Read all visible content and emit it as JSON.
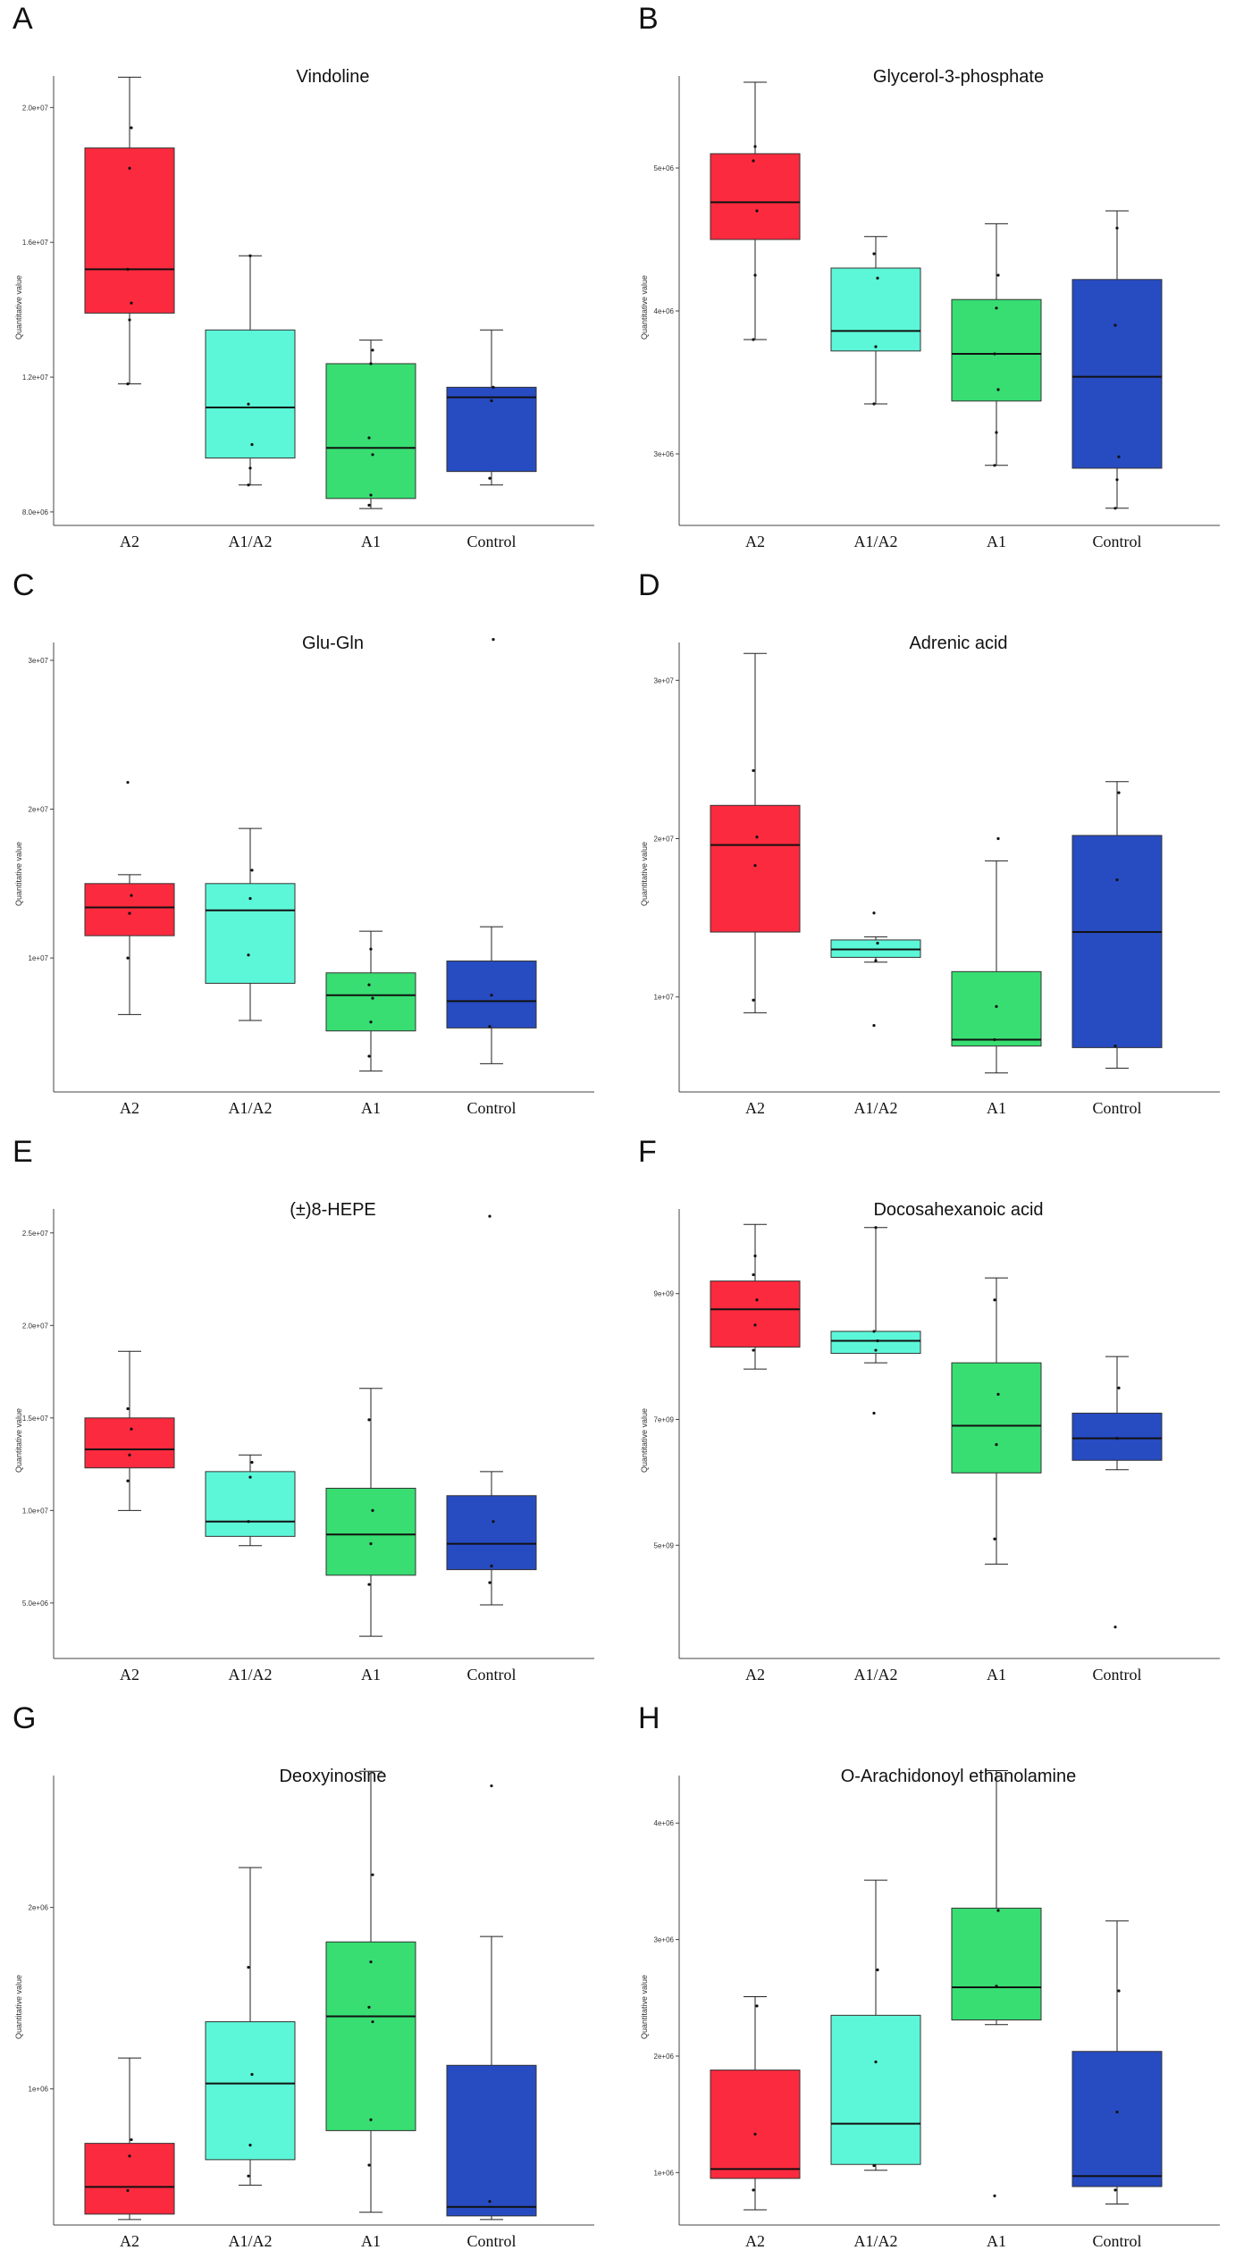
{
  "chart_data": [
    {
      "panel_letter": "A",
      "type": "box",
      "title": "Vindoline",
      "ylabel": "Quantitative value",
      "categories": [
        "A2",
        "A1/A2",
        "A1",
        "Control"
      ],
      "colors": [
        "#fb2a3e",
        "#5cf7d8",
        "#38de72",
        "#274bc1"
      ],
      "ylim": [
        7600000,
        21600000
      ],
      "yticks": [
        8000000,
        12000000,
        16000000,
        20000000
      ],
      "ytick_labels": [
        "8.0e+06",
        "1.2e+07",
        "1.6e+07",
        "2.0e+07"
      ],
      "boxes": [
        {
          "min": 11800000,
          "q1": 13900000,
          "median": 15200000,
          "q3": 18800000,
          "max": 20900000,
          "points": [
            11800000,
            13700000,
            14200000,
            15200000,
            18200000,
            19400000
          ]
        },
        {
          "min": 8800000,
          "q1": 9600000,
          "median": 11100000,
          "q3": 13400000,
          "max": 15600000,
          "points": [
            8800000,
            9300000,
            10000000,
            11200000,
            15600000
          ]
        },
        {
          "min": 8100000,
          "q1": 8400000,
          "median": 9900000,
          "q3": 12400000,
          "max": 13100000,
          "points": [
            8200000,
            8500000,
            9700000,
            10200000,
            12400000,
            12800000
          ]
        },
        {
          "min": 8800000,
          "q1": 9200000,
          "median": 11400000,
          "q3": 11700000,
          "max": 13400000,
          "points": [
            9000000,
            11300000,
            11700000
          ]
        }
      ]
    },
    {
      "panel_letter": "B",
      "type": "box",
      "title": "Glycerol-3-phosphate",
      "ylabel": "Quantitative value",
      "categories": [
        "A2",
        "A1/A2",
        "A1",
        "Control"
      ],
      "colors": [
        "#fb2a3e",
        "#5cf7d8",
        "#38de72",
        "#274bc1"
      ],
      "ylim": [
        2500000,
        5800000
      ],
      "yticks": [
        3000000,
        4000000,
        5000000
      ],
      "ytick_labels": [
        "3e+06",
        "4e+06",
        "5e+06"
      ],
      "boxes": [
        {
          "min": 3800000,
          "q1": 4500000,
          "median": 4760000,
          "q3": 5100000,
          "max": 5600000,
          "points": [
            3800000,
            4250000,
            4700000,
            5050000,
            5150000
          ]
        },
        {
          "min": 3350000,
          "q1": 3720000,
          "median": 3860000,
          "q3": 4300000,
          "max": 4520000,
          "points": [
            3350000,
            3750000,
            4230000,
            4400000
          ]
        },
        {
          "min": 2920000,
          "q1": 3370000,
          "median": 3700000,
          "q3": 4080000,
          "max": 4610000,
          "points": [
            2920000,
            3150000,
            3450000,
            3700000,
            4020000,
            4250000
          ]
        },
        {
          "min": 2620000,
          "q1": 2900000,
          "median": 3540000,
          "q3": 4220000,
          "max": 4700000,
          "points": [
            2620000,
            2820000,
            2980000,
            3900000,
            4580000
          ]
        }
      ]
    },
    {
      "panel_letter": "C",
      "type": "box",
      "title": "Glu-Gln",
      "ylabel": "Quantitative value",
      "categories": [
        "A2",
        "A1/A2",
        "A1",
        "Control"
      ],
      "colors": [
        "#fb2a3e",
        "#5cf7d8",
        "#38de72",
        "#274bc1"
      ],
      "ylim": [
        1000000,
        32700000
      ],
      "yticks": [
        10000000,
        20000000,
        30000000
      ],
      "ytick_labels": [
        "1e+07",
        "2e+07",
        "3e+07"
      ],
      "boxes": [
        {
          "min": 6200000,
          "q1": 11500000,
          "median": 13400000,
          "q3": 15000000,
          "max": 15600000,
          "points": [
            10000000,
            13000000,
            14200000,
            21800000
          ]
        },
        {
          "min": 5800000,
          "q1": 8300000,
          "median": 13200000,
          "q3": 15000000,
          "max": 18700000,
          "points": [
            10200000,
            14000000,
            15900000
          ]
        },
        {
          "min": 2400000,
          "q1": 5100000,
          "median": 7500000,
          "q3": 9000000,
          "max": 11800000,
          "points": [
            3400000,
            5700000,
            7300000,
            8200000,
            10600000
          ]
        },
        {
          "min": 2900000,
          "q1": 5300000,
          "median": 7100000,
          "q3": 9800000,
          "max": 12100000,
          "points": [
            5400000,
            7500000,
            31400000
          ]
        }
      ]
    },
    {
      "panel_letter": "D",
      "type": "box",
      "title": "Adrenic acid",
      "ylabel": "Quantitative value",
      "categories": [
        "A2",
        "A1/A2",
        "A1",
        "Control"
      ],
      "colors": [
        "#fb2a3e",
        "#5cf7d8",
        "#38de72",
        "#274bc1"
      ],
      "ylim": [
        4000000,
        33800000
      ],
      "yticks": [
        10000000,
        20000000,
        30000000
      ],
      "ytick_labels": [
        "1e+07",
        "2e+07",
        "3e+07"
      ],
      "boxes": [
        {
          "min": 9000000,
          "q1": 14100000,
          "median": 19600000,
          "q3": 22100000,
          "max": 31700000,
          "points": [
            9800000,
            18300000,
            20100000,
            24300000
          ]
        },
        {
          "min": 12200000,
          "q1": 12500000,
          "median": 13000000,
          "q3": 13600000,
          "max": 13800000,
          "points": [
            8200000,
            12300000,
            13400000,
            15300000
          ]
        },
        {
          "min": 5200000,
          "q1": 6900000,
          "median": 7300000,
          "q3": 11600000,
          "max": 18600000,
          "points": [
            7300000,
            9400000,
            20000000
          ]
        },
        {
          "min": 5500000,
          "q1": 6800000,
          "median": 14100000,
          "q3": 20200000,
          "max": 23600000,
          "points": [
            6900000,
            17400000,
            22900000
          ]
        }
      ]
    },
    {
      "panel_letter": "E",
      "type": "box",
      "title": "(±)8-HEPE",
      "ylabel": "Quantitative value",
      "categories": [
        "A2",
        "A1/A2",
        "A1",
        "Control"
      ],
      "colors": [
        "#fb2a3e",
        "#5cf7d8",
        "#38de72",
        "#274bc1"
      ],
      "ylim": [
        2000000,
        27500000
      ],
      "yticks": [
        5000000,
        10000000,
        15000000,
        20000000,
        25000000
      ],
      "ytick_labels": [
        "5.0e+06",
        "1.0e+07",
        "1.5e+07",
        "2.0e+07",
        "2.5e+07"
      ],
      "boxes": [
        {
          "min": 10000000,
          "q1": 12300000,
          "median": 13300000,
          "q3": 15000000,
          "max": 18600000,
          "points": [
            11600000,
            13000000,
            14400000,
            15500000
          ]
        },
        {
          "min": 8100000,
          "q1": 8600000,
          "median": 9400000,
          "q3": 12100000,
          "max": 13000000,
          "points": [
            9400000,
            11800000,
            12600000
          ]
        },
        {
          "min": 3200000,
          "q1": 6500000,
          "median": 8700000,
          "q3": 11200000,
          "max": 16600000,
          "points": [
            6000000,
            8200000,
            10000000,
            14900000
          ]
        },
        {
          "min": 4900000,
          "q1": 6800000,
          "median": 8200000,
          "q3": 10800000,
          "max": 12100000,
          "points": [
            6100000,
            7000000,
            9400000,
            25900000
          ]
        }
      ]
    },
    {
      "panel_letter": "F",
      "type": "box",
      "title": "Docosahexanoic acid",
      "ylabel": "Quantitative value",
      "categories": [
        "A2",
        "A1/A2",
        "A1",
        "Control"
      ],
      "colors": [
        "#fb2a3e",
        "#5cf7d8",
        "#38de72",
        "#274bc1"
      ],
      "ylim": [
        3200000000,
        10700000000
      ],
      "yticks": [
        5000000000,
        7000000000,
        9000000000
      ],
      "ytick_labels": [
        "5e+09",
        "7e+09",
        "9e+09"
      ],
      "boxes": [
        {
          "min": 7800000000,
          "q1": 8150000000,
          "median": 8750000000,
          "q3": 9200000000,
          "max": 10100000000,
          "points": [
            8100000000,
            8500000000,
            8900000000,
            9300000000,
            9600000000
          ]
        },
        {
          "min": 7900000000,
          "q1": 8050000000,
          "median": 8250000000,
          "q3": 8400000000,
          "max": 10050000000,
          "points": [
            7100000000,
            8100000000,
            8250000000,
            8400000000,
            10050000000
          ]
        },
        {
          "min": 4700000000,
          "q1": 6150000000,
          "median": 6900000000,
          "q3": 7900000000,
          "max": 9250000000,
          "points": [
            5100000000,
            6600000000,
            7400000000,
            8900000000
          ]
        },
        {
          "min": 6200000000,
          "q1": 6350000000,
          "median": 6700000000,
          "q3": 7100000000,
          "max": 8000000000,
          "points": [
            3700000000,
            6700000000,
            7500000000
          ]
        }
      ]
    },
    {
      "panel_letter": "G",
      "type": "box",
      "title": "Deoxyinosine",
      "ylabel": "Quantitative value",
      "categories": [
        "A2",
        "A1/A2",
        "A1",
        "Control"
      ],
      "colors": [
        "#fb2a3e",
        "#5cf7d8",
        "#38de72",
        "#274bc1"
      ],
      "ylim": [
        250000,
        2850000
      ],
      "yticks": [
        1000000,
        2000000
      ],
      "ytick_labels": [
        "1e+06",
        "2e+06"
      ],
      "boxes": [
        {
          "min": 280000,
          "q1": 310000,
          "median": 460000,
          "q3": 700000,
          "max": 1170000,
          "points": [
            440000,
            630000,
            720000
          ]
        },
        {
          "min": 470000,
          "q1": 610000,
          "median": 1030000,
          "q3": 1370000,
          "max": 2220000,
          "points": [
            520000,
            690000,
            1080000,
            1670000
          ]
        },
        {
          "min": 320000,
          "q1": 770000,
          "median": 1400000,
          "q3": 1810000,
          "max": 2750000,
          "points": [
            580000,
            830000,
            1370000,
            1450000,
            1700000,
            2180000
          ]
        },
        {
          "min": 280000,
          "q1": 300000,
          "median": 350000,
          "q3": 1130000,
          "max": 1840000,
          "points": [
            380000,
            2670000
          ]
        }
      ]
    },
    {
      "panel_letter": "H",
      "type": "box",
      "title": "O-Arachidonoyl ethanolamine",
      "ylabel": "Quantitative value",
      "categories": [
        "A2",
        "A1/A2",
        "A1",
        "Control"
      ],
      "colors": [
        "#fb2a3e",
        "#5cf7d8",
        "#38de72",
        "#274bc1"
      ],
      "ylim": [
        550000,
        4600000
      ],
      "yticks": [
        1000000,
        2000000,
        3000000,
        4000000
      ],
      "ytick_labels": [
        "1e+06",
        "2e+06",
        "3e+06",
        "4e+06"
      ],
      "boxes": [
        {
          "min": 680000,
          "q1": 950000,
          "median": 1030000,
          "q3": 1880000,
          "max": 2510000,
          "points": [
            850000,
            1330000,
            2430000
          ]
        },
        {
          "min": 1020000,
          "q1": 1070000,
          "median": 1420000,
          "q3": 2350000,
          "max": 3510000,
          "points": [
            1060000,
            1950000,
            2740000
          ]
        },
        {
          "min": 2270000,
          "q1": 2310000,
          "median": 2590000,
          "q3": 3270000,
          "max": 4450000,
          "points": [
            800000,
            2600000,
            3250000
          ]
        },
        {
          "min": 730000,
          "q1": 880000,
          "median": 970000,
          "q3": 2040000,
          "max": 3160000,
          "points": [
            850000,
            1520000,
            2560000
          ]
        }
      ]
    }
  ]
}
